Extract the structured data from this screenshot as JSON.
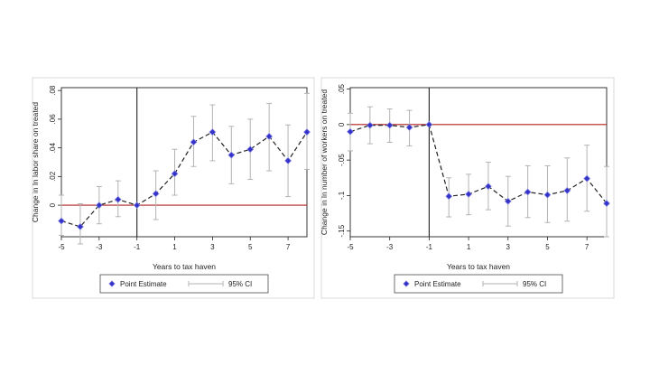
{
  "chart_data": [
    {
      "type": "scatter",
      "error_bars": true,
      "connector": "dashed-line",
      "ylabel": "Change in ln labor share on treated",
      "xlabel": "Years to tax haven",
      "xlim": [
        -5,
        8
      ],
      "ylim": [
        -0.022,
        0.082
      ],
      "x_ticks": [
        -5,
        -3,
        -1,
        1,
        3,
        5,
        7
      ],
      "x_tick_labels": [
        "-5",
        "-3",
        "-1",
        "1",
        "3",
        "5",
        "7"
      ],
      "y_ticks": [
        0,
        0.02,
        0.04,
        0.06,
        0.08
      ],
      "y_tick_labels": [
        "0",
        ".02",
        ".04",
        ".06",
        ".08"
      ],
      "reference_hline": 0,
      "reference_vline": -1,
      "grid": false,
      "legend_position": "bottom",
      "legend": [
        "Point Estimate",
        "95% CI"
      ],
      "x": [
        -5,
        -4,
        -3,
        -2,
        -1,
        0,
        1,
        2,
        3,
        4,
        5,
        6,
        7,
        8
      ],
      "y": [
        -0.011,
        -0.015,
        0.0,
        0.004,
        0.0,
        0.008,
        0.022,
        0.044,
        0.051,
        0.035,
        0.039,
        0.048,
        0.031,
        0.051
      ],
      "ci_low": [
        -0.021,
        -0.027,
        -0.013,
        -0.008,
        0.0,
        -0.01,
        0.007,
        0.027,
        0.031,
        0.015,
        0.018,
        0.024,
        0.006,
        0.025
      ],
      "ci_high": [
        0.007,
        0.001,
        0.013,
        0.017,
        0.0,
        0.024,
        0.039,
        0.062,
        0.07,
        0.055,
        0.06,
        0.071,
        0.056,
        0.078
      ]
    },
    {
      "type": "scatter",
      "error_bars": true,
      "connector": "dashed-line",
      "ylabel": "Change in ln number of workers on treated",
      "xlabel": "Years to tax haven",
      "xlim": [
        -5,
        8
      ],
      "ylim": [
        -0.158,
        0.052
      ],
      "x_ticks": [
        -5,
        -3,
        -1,
        1,
        3,
        5,
        7
      ],
      "x_tick_labels": [
        "-5",
        "-3",
        "-1",
        "1",
        "3",
        "5",
        "7"
      ],
      "y_ticks": [
        0.05,
        0,
        -0.05,
        -0.1,
        -0.15
      ],
      "y_tick_labels": [
        ".05",
        "0",
        "-.05",
        "-.1",
        "-.15"
      ],
      "reference_hline": 0,
      "reference_vline": -1,
      "grid": false,
      "legend_position": "bottom",
      "legend": [
        "Point Estimate",
        "95% CI"
      ],
      "x": [
        -5,
        -4,
        -3,
        -2,
        -1,
        0,
        1,
        2,
        3,
        4,
        5,
        6,
        7,
        8
      ],
      "y": [
        -0.01,
        -0.001,
        -0.001,
        -0.004,
        0.0,
        -0.101,
        -0.098,
        -0.087,
        -0.108,
        -0.095,
        -0.099,
        -0.093,
        -0.076,
        -0.111
      ],
      "ci_low": [
        -0.037,
        -0.027,
        -0.025,
        -0.03,
        0.0,
        -0.13,
        -0.127,
        -0.12,
        -0.143,
        -0.131,
        -0.138,
        -0.136,
        -0.122,
        -0.158
      ],
      "ci_high": [
        0.016,
        0.025,
        0.022,
        0.02,
        0.0,
        -0.075,
        -0.07,
        -0.053,
        -0.073,
        -0.058,
        -0.058,
        -0.047,
        -0.029,
        -0.059
      ]
    }
  ],
  "style": {
    "point_color": "#3333cc",
    "point_outline": "#8888dd",
    "ci_color": "#b3b3b3",
    "connector_color": "#222222",
    "reference_color": "#b22222",
    "axis_color": "#222222"
  }
}
